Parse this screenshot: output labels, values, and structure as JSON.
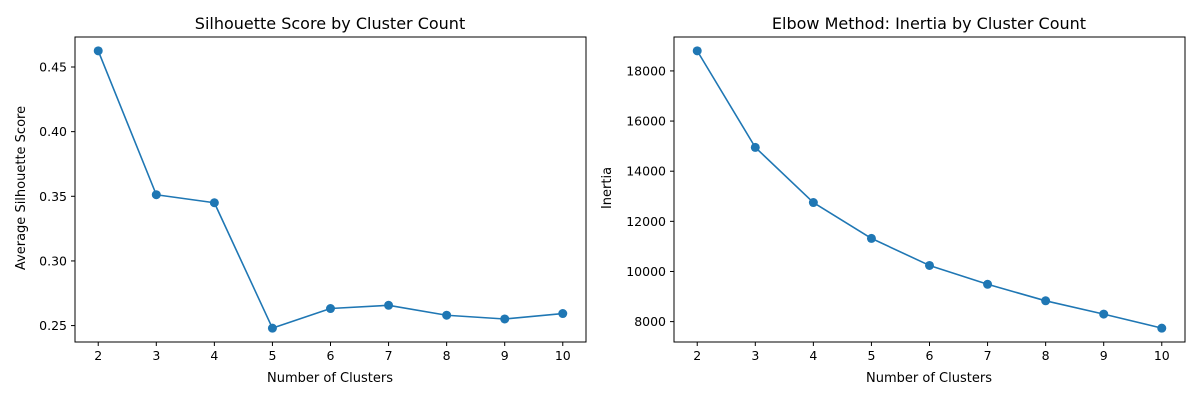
{
  "colors": {
    "line": "#1f77b4",
    "axis": "#000000",
    "background": "#ffffff"
  },
  "chart_data": [
    {
      "type": "line",
      "title": "Silhouette Score by Cluster Count",
      "xlabel": "Number of Clusters",
      "ylabel": "Average Silhouette Score",
      "marker": "circle",
      "grid": false,
      "x": [
        2,
        3,
        4,
        5,
        6,
        7,
        8,
        9,
        10
      ],
      "y": [
        0.4625,
        0.3512,
        0.345,
        0.248,
        0.2632,
        0.2657,
        0.258,
        0.2551,
        0.2593
      ],
      "xlim": [
        1.6,
        10.4
      ],
      "ylim": [
        0.2373,
        0.4732
      ],
      "xticks": [
        2,
        3,
        4,
        5,
        6,
        7,
        8,
        9,
        10
      ],
      "yticks": [
        0.25,
        0.3,
        0.35,
        0.4,
        0.45
      ],
      "ytick_labels": [
        "0.25",
        "0.30",
        "0.35",
        "0.40",
        "0.45"
      ]
    },
    {
      "type": "line",
      "title": "Elbow Method: Inertia by Cluster Count",
      "xlabel": "Number of Clusters",
      "ylabel": "Inertia",
      "marker": "circle",
      "grid": false,
      "x": [
        2,
        3,
        4,
        5,
        6,
        7,
        8,
        9,
        10
      ],
      "y": [
        18800,
        14950,
        12750,
        11320,
        10240,
        9490,
        8830,
        8300,
        7740
      ],
      "xlim": [
        1.6,
        10.4
      ],
      "ylim": [
        7187,
        19353
      ],
      "xticks": [
        2,
        3,
        4,
        5,
        6,
        7,
        8,
        9,
        10
      ],
      "yticks": [
        8000,
        10000,
        12000,
        14000,
        16000,
        18000
      ],
      "ytick_labels": [
        "8000",
        "10000",
        "12000",
        "14000",
        "16000",
        "18000"
      ]
    }
  ]
}
